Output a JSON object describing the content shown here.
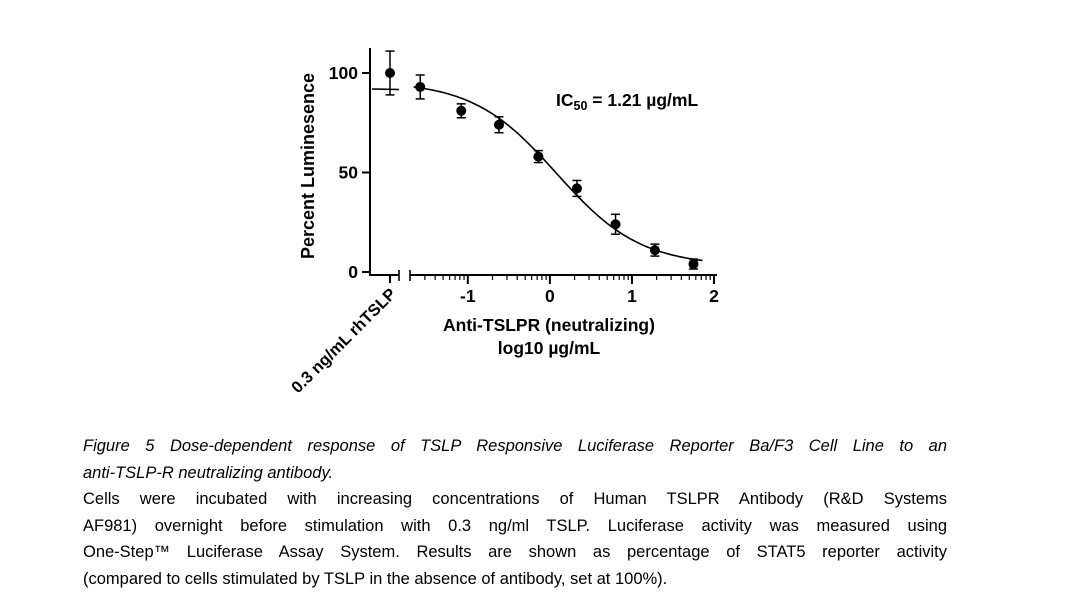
{
  "chart_data": {
    "type": "scatter",
    "title": "",
    "ylabel": "Percent Luminesence",
    "xlabel_line1": "Anti-TSLPR (neutralizing)",
    "xlabel_line2": "log10 µg/mL",
    "x_axis": {
      "scale": "log10",
      "ticks": [
        -1,
        0,
        1,
        2
      ],
      "range": [
        -1.68,
        2
      ],
      "break_before_axis": true
    },
    "y_axis": {
      "ticks": [
        0,
        50,
        100
      ],
      "range": [
        0,
        115
      ]
    },
    "annotation": {
      "text": "IC50 = 1.21 µg/mL",
      "prefix": "IC",
      "subscript": "50",
      "suffix": " = 1.21 µg/mL"
    },
    "ic50_ug_ml": 1.21,
    "control_point": {
      "label": "0.3 ng/mL rhTSLP",
      "percent": 100,
      "error": 11
    },
    "points": [
      {
        "log10_conc": -1.58,
        "percent": 93,
        "error": 6
      },
      {
        "log10_conc": -1.08,
        "percent": 81,
        "error": 3.5
      },
      {
        "log10_conc": -0.62,
        "percent": 74,
        "error": 4
      },
      {
        "log10_conc": -0.14,
        "percent": 58,
        "error": 3
      },
      {
        "log10_conc": 0.33,
        "percent": 42,
        "error": 4
      },
      {
        "log10_conc": 0.8,
        "percent": 24,
        "error": 5
      },
      {
        "log10_conc": 1.28,
        "percent": 11,
        "error": 3
      },
      {
        "log10_conc": 1.75,
        "percent": 4,
        "error": 2.5
      }
    ],
    "legend_position": "none",
    "grid": false
  },
  "caption": {
    "lines": [
      "Figure 5 Dose-dependent response of TSLP Responsive Luciferase Reporter Ba/F3 Cell Line to an",
      "anti-TSLP-R neutralizing antibody.",
      "Cells were incubated with increasing concentrations of Human TSLPR Antibody (R&D Systems",
      "AF981) overnight before stimulation with 0.3 ng/ml TSLP. Luciferase activity was measured using",
      "One-Step™ Luciferase Assay System. Results are shown as percentage of STAT5 reporter activity",
      "(compared to cells stimulated by TSLP in the absence of antibody, set at 100%)."
    ]
  },
  "colors": {
    "foreground": "#000000",
    "background": "#ffffff"
  }
}
